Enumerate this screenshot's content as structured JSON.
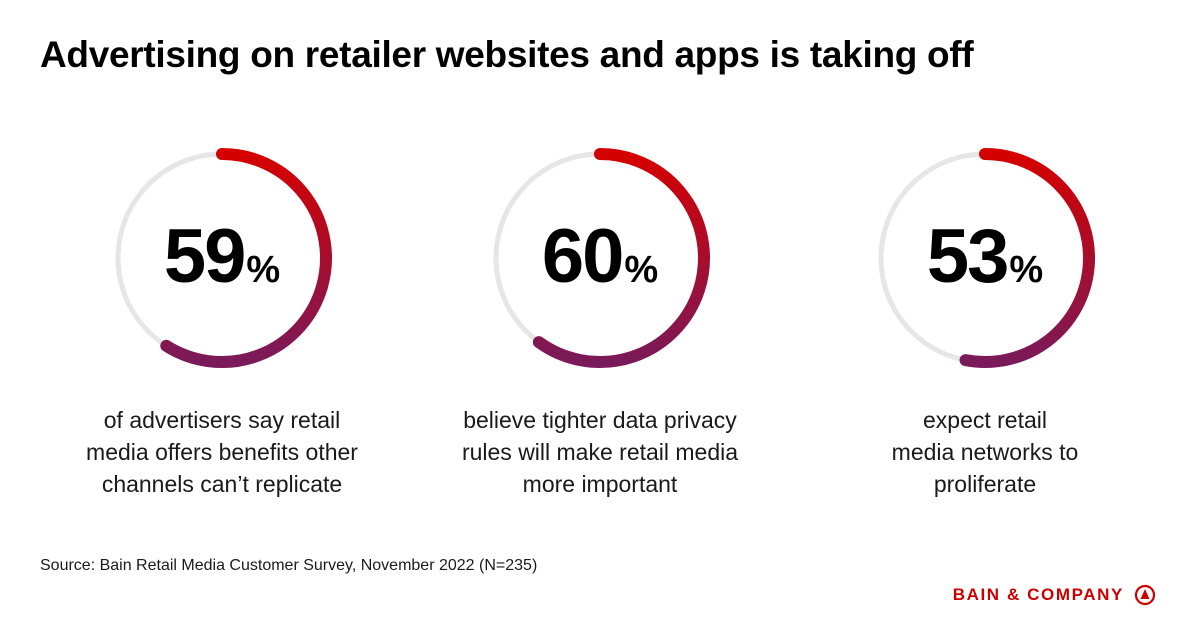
{
  "title": "Advertising on retailer websites and apps is taking off",
  "chart_data": {
    "type": "donut",
    "items": [
      {
        "value": 59,
        "unit": "%",
        "caption": [
          "of advertisers say retail",
          "media offers benefits other",
          "channels can’t replicate"
        ]
      },
      {
        "value": 60,
        "unit": "%",
        "caption": [
          "believe tighter data privacy",
          "rules will make retail media",
          "more important"
        ]
      },
      {
        "value": 53,
        "unit": "%",
        "caption": [
          "expect retail",
          "media networks to",
          "proliferate"
        ]
      }
    ],
    "max": 100
  },
  "colors": {
    "arc_start": "#d50000",
    "arc_end": "#7a1a5a",
    "track": "#e6e6e6",
    "brand": "#cc0000"
  },
  "source": "Source: Bain Retail Media Customer Survey, November 2022 (N=235)",
  "brand": {
    "name": "BAIN & COMPANY",
    "logo_icon": "bain-logo-icon"
  }
}
